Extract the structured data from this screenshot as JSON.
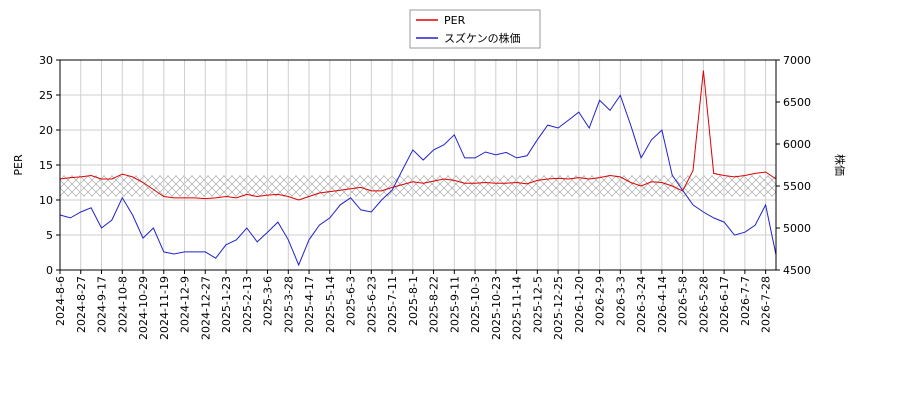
{
  "chart_data": {
    "type": "line",
    "categories": [
      "2024-8-6",
      null,
      "2024-8-27",
      null,
      "2024-9-17",
      null,
      "2024-10-8",
      null,
      "2024-10-29",
      null,
      "2024-11-19",
      null,
      "2024-12-9",
      null,
      "2024-12-27",
      null,
      "2025-1-23",
      null,
      "2025-2-13",
      null,
      "2025-3-6",
      null,
      "2025-3-28",
      null,
      "2025-4-17",
      null,
      "2025-5-14",
      null,
      "2025-6-3",
      null,
      "2025-6-23",
      null,
      "2025-7-11",
      null,
      "2025-8-1",
      null,
      "2025-8-22",
      null,
      "2025-9-11",
      null,
      "2025-10-3",
      null,
      "2025-10-23",
      null,
      "2025-11-14",
      null,
      "2025-12-5",
      null,
      "2025-12-25",
      null,
      "2026-1-20",
      null,
      "2026-2-9",
      null,
      "2026-3-3",
      null,
      "2026-3-24",
      null,
      "2026-4-14",
      null,
      "2026-5-8",
      null,
      "2026-5-28",
      null,
      "2026-6-17",
      null,
      "2026-7-7",
      null,
      "2026-7-28",
      null
    ],
    "series": [
      {
        "name": "PER",
        "color": "#dd0000",
        "values": [
          13,
          13.2,
          13.3,
          13.5,
          13,
          13,
          13.7,
          13.3,
          12.5,
          11.5,
          10.5,
          10.3,
          10.3,
          10.3,
          10.2,
          10.3,
          10.5,
          10.3,
          10.8,
          10.5,
          10.7,
          10.8,
          10.5,
          10,
          10.5,
          11,
          11.2,
          11.4,
          11.6,
          11.8,
          11.3,
          11.3,
          11.8,
          12.2,
          12.6,
          12.4,
          12.7,
          13,
          12.8,
          12.4,
          12.4,
          12.5,
          12.4,
          12.4,
          12.5,
          12.3,
          12.8,
          13,
          13.1,
          13,
          13.2,
          13,
          13.2,
          13.5,
          13.3,
          12.5,
          12,
          12.6,
          12.5,
          12,
          11.3,
          14.2,
          28.5,
          13.8,
          13.5,
          13.3,
          13.5,
          13.8,
          14,
          13
        ]
      },
      {
        "name": "スズケンの株価",
        "color": "#2222cc",
        "axis": "y2",
        "values": [
          5155,
          5120,
          5190,
          5240,
          5000,
          5095,
          5360,
          5155,
          4880,
          5000,
          4715,
          4690,
          4715,
          4715,
          4715,
          4640,
          4800,
          4860,
          5000,
          4835,
          4950,
          5070,
          4860,
          4560,
          4860,
          5035,
          5120,
          5275,
          5360,
          5215,
          5190,
          5335,
          5450,
          5690,
          5930,
          5810,
          5930,
          5990,
          6110,
          5835,
          5835,
          5905,
          5870,
          5900,
          5835,
          5860,
          6050,
          6225,
          6190,
          6285,
          6380,
          6190,
          6520,
          6400,
          6580,
          6225,
          5835,
          6050,
          6165,
          5630,
          5450,
          5275,
          5190,
          5120,
          5070,
          4915,
          4950,
          5035,
          5275,
          4680
        ]
      }
    ],
    "band": [
      10.5,
      13.5
    ],
    "ylabel": "PER",
    "y2label": "株価",
    "ylim": [
      0,
      30
    ],
    "yticks": [
      0,
      5,
      10,
      15,
      20,
      25,
      30
    ],
    "y2lim": [
      4500,
      7000
    ],
    "y2ticks": [
      4500,
      5000,
      5500,
      6000,
      6500,
      7000
    ],
    "grid": true,
    "legend": "upper center"
  }
}
